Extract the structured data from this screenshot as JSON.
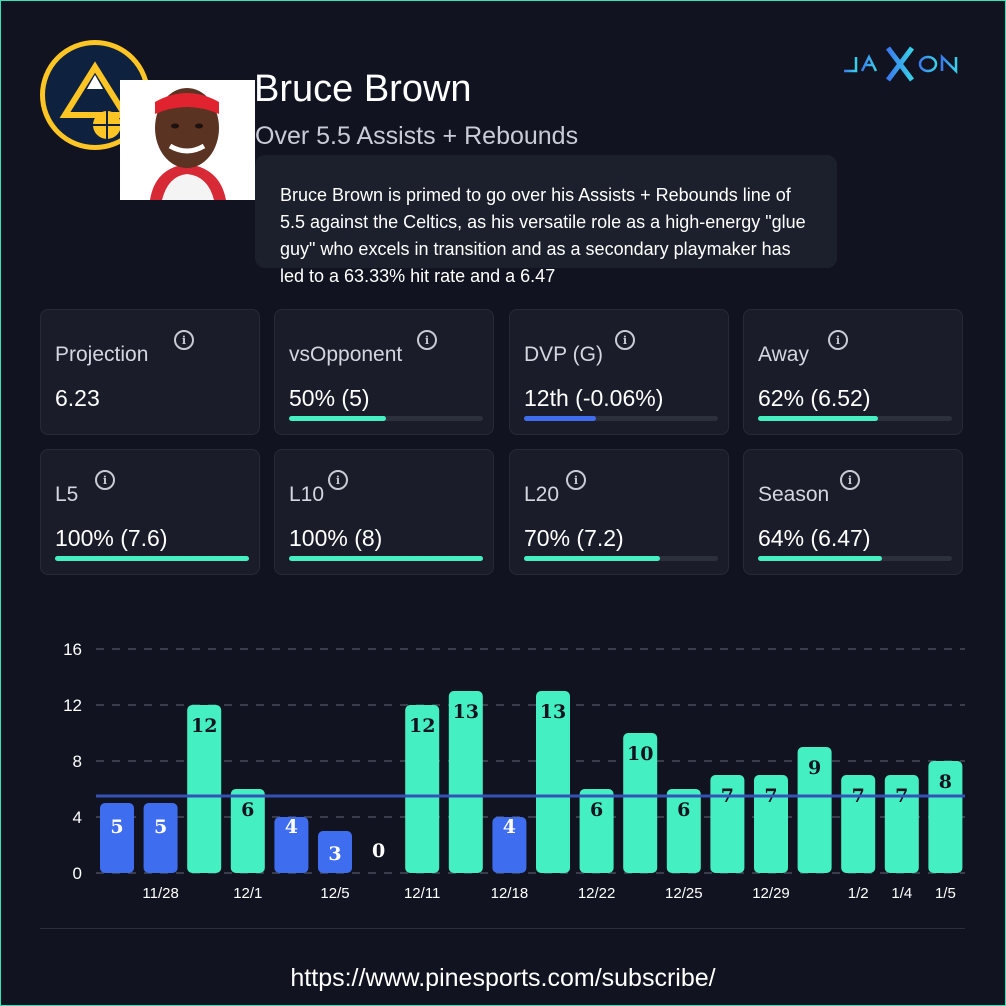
{
  "header": {
    "player_name": "Bruce Brown",
    "market_line": "Over 5.5 Assists + Rebounds",
    "brand_logo": "JAXON",
    "analysis": "Bruce Brown is primed to go over his Assists + Rebounds line of 5.5 against the Celtics, as his versatile role as a high-energy \"glue guy\" who excels in transition and as a secondary playmaker has led to a 63.33% hit rate and a 6.47"
  },
  "stats": [
    {
      "label": "Projection",
      "value": "6.23",
      "fill": null,
      "color": "#44f0c2"
    },
    {
      "label": "vsOpponent",
      "value": "50% (5)",
      "fill": 0.5,
      "color": "#44f0c2"
    },
    {
      "label": "DVP (G)",
      "value": "12th (-0.06%)",
      "fill": 0.37,
      "color": "#3f6df0"
    },
    {
      "label": "Away",
      "value": "62% (6.52)",
      "fill": 0.62,
      "color": "#44f0c2"
    },
    {
      "label": "L5",
      "value": "100% (7.6)",
      "fill": 1.0,
      "color": "#44f0c2"
    },
    {
      "label": "L10",
      "value": "100% (8)",
      "fill": 1.0,
      "color": "#44f0c2"
    },
    {
      "label": "L20",
      "value": "70% (7.2)",
      "fill": 0.7,
      "color": "#44f0c2"
    },
    {
      "label": "Season",
      "value": "64% (6.47)",
      "fill": 0.64,
      "color": "#44f0c2"
    }
  ],
  "chart_data": {
    "type": "bar",
    "values": [
      5,
      5,
      12,
      6,
      4,
      3,
      0,
      12,
      13,
      4,
      13,
      6,
      10,
      6,
      7,
      7,
      9,
      7,
      7,
      8
    ],
    "x_labels": [
      "",
      "11/28",
      "",
      "12/1",
      "",
      "12/5",
      "",
      "12/11",
      "",
      "12/18",
      "",
      "12/22",
      "",
      "12/25",
      "",
      "12/29",
      "",
      "1/2",
      "1/4",
      "1/5"
    ],
    "line": 5.5,
    "ylim": [
      0,
      16
    ],
    "yticks": [
      "0",
      "4",
      "8",
      "12",
      "16"
    ],
    "grid": true,
    "colors": {
      "over": "#44f0c2",
      "under": "#3f6df0",
      "line": "#3452b8"
    }
  },
  "footer": {
    "url": "https://www.pinesports.com/subscribe/"
  }
}
